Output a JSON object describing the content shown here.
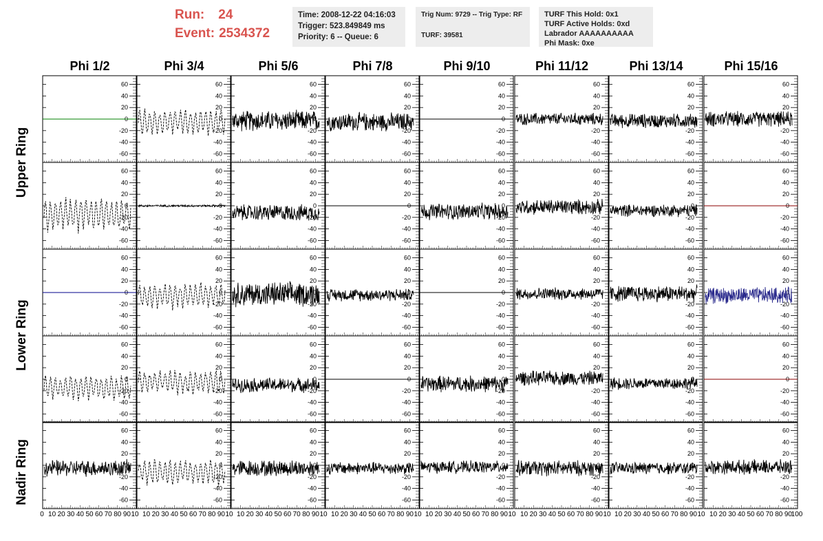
{
  "header": {
    "run_label": "Run:",
    "run_value": "24",
    "event_label": "Event:",
    "event_value": "2534372",
    "time_line": "Time: 2008-12-22 04:16:03",
    "trigger_line": "Trigger: 523.849849 ms",
    "priority_line": "Priority: 6 -- Queue: 6",
    "trig_line": "Trig Num: 9729 -- Trig Type: RF",
    "turf_line": "TURF: 39581",
    "turf_hold_line": "TURF This Hold: 0x1",
    "turf_active_line": "TURF Active Holds: 0xd",
    "labrador_line": "Labrador AAAAAAAAAA",
    "phi_mask_line": "Phi Mask: 0xe"
  },
  "columns": [
    "Phi 1/2",
    "Phi 3/4",
    "Phi 5/6",
    "Phi 7/8",
    "Phi 9/10",
    "Phi 11/12",
    "Phi 13/14",
    "Phi 15/16"
  ],
  "rings": [
    "Upper Ring",
    "Lower Ring",
    "Nadir Ring"
  ],
  "chart_data": {
    "type": "line",
    "title": "",
    "xlabel": "",
    "ylabel": "",
    "xlim": [
      0,
      100
    ],
    "ylim": [
      -75,
      75
    ],
    "x_ticks": [
      "0",
      "10",
      "20",
      "30",
      "40",
      "50",
      "60",
      "70",
      "80",
      "90",
      "100"
    ],
    "x_tick_labels_printed": "10 20 30 40 50 60 70 80 90 10",
    "first_column_extra_label": "0",
    "last_column_extra_label": "100",
    "y_ticks": [
      60,
      40,
      20,
      0,
      -20,
      -40,
      -60
    ],
    "rows": [
      {
        "row": 1,
        "panels": [
          {
            "kind": "flat",
            "color": "#008000"
          },
          {
            "kind": "dashed",
            "amplitude": 22,
            "offset": -5,
            "color": "#000000"
          },
          {
            "kind": "noise",
            "amplitude": 20,
            "offset": -3,
            "color": "#000000"
          },
          {
            "kind": "noise",
            "amplitude": 18,
            "offset": -5,
            "color": "#000000"
          },
          {
            "kind": "flat",
            "color": "#000000"
          },
          {
            "kind": "noise",
            "amplitude": 12,
            "offset": 0,
            "color": "#000000"
          },
          {
            "kind": "noise",
            "amplitude": 14,
            "offset": -3,
            "color": "#000000"
          },
          {
            "kind": "noise",
            "amplitude": 15,
            "offset": 0,
            "color": "#000000"
          }
        ]
      },
      {
        "row": 2,
        "panels": [
          {
            "kind": "dashed",
            "amplitude": 28,
            "offset": -15,
            "color": "#000000"
          },
          {
            "kind": "noise",
            "amplitude": 2,
            "offset": 0,
            "color": "#000000"
          },
          {
            "kind": "noise",
            "amplitude": 16,
            "offset": -12,
            "color": "#000000"
          },
          {
            "kind": "flat",
            "color": "#000000"
          },
          {
            "kind": "noise",
            "amplitude": 16,
            "offset": -10,
            "color": "#000000"
          },
          {
            "kind": "noise",
            "amplitude": 15,
            "offset": -2,
            "color": "#000000"
          },
          {
            "kind": "noise",
            "amplitude": 12,
            "offset": -8,
            "color": "#000000"
          },
          {
            "kind": "flat",
            "color": "#8b0000"
          }
        ]
      },
      {
        "row": 3,
        "panels": [
          {
            "kind": "flat",
            "color": "#00008b"
          },
          {
            "kind": "dashed",
            "amplitude": 22,
            "offset": -5,
            "color": "#000000"
          },
          {
            "kind": "noise",
            "amplitude": 24,
            "offset": -3,
            "color": "#000000"
          },
          {
            "kind": "noise",
            "amplitude": 12,
            "offset": -4,
            "color": "#000000"
          },
          {
            "kind": "flat",
            "color": "#000000"
          },
          {
            "kind": "noise",
            "amplitude": 12,
            "offset": -2,
            "color": "#000000"
          },
          {
            "kind": "noise",
            "amplitude": 16,
            "offset": -2,
            "color": "#000000"
          },
          {
            "kind": "noise",
            "amplitude": 16,
            "offset": -5,
            "color": "#2a2a8c"
          }
        ]
      },
      {
        "row": 4,
        "panels": [
          {
            "kind": "dashed",
            "amplitude": 22,
            "offset": -15,
            "color": "#000000"
          },
          {
            "kind": "dashed",
            "amplitude": 20,
            "offset": -5,
            "color": "#000000"
          },
          {
            "kind": "noise",
            "amplitude": 14,
            "offset": -10,
            "color": "#000000"
          },
          {
            "kind": "flat",
            "color": "#000000"
          },
          {
            "kind": "noise",
            "amplitude": 16,
            "offset": -8,
            "color": "#000000"
          },
          {
            "kind": "noise",
            "amplitude": 14,
            "offset": 2,
            "color": "#000000"
          },
          {
            "kind": "noise",
            "amplitude": 12,
            "offset": -7,
            "color": "#000000"
          },
          {
            "kind": "flat",
            "color": "#8b0000"
          }
        ]
      },
      {
        "row": 5,
        "panels": [
          {
            "kind": "noise",
            "amplitude": 16,
            "offset": -5,
            "color": "#000000"
          },
          {
            "kind": "dashed",
            "amplitude": 22,
            "offset": -12,
            "color": "#000000"
          },
          {
            "kind": "noise",
            "amplitude": 16,
            "offset": -5,
            "color": "#000000"
          },
          {
            "kind": "noise",
            "amplitude": 12,
            "offset": -5,
            "color": "#000000"
          },
          {
            "kind": "noise",
            "amplitude": 12,
            "offset": -3,
            "color": "#000000"
          },
          {
            "kind": "noise",
            "amplitude": 15,
            "offset": -5,
            "color": "#000000"
          },
          {
            "kind": "noise",
            "amplitude": 12,
            "offset": -5,
            "color": "#000000"
          },
          {
            "kind": "noise",
            "amplitude": 14,
            "offset": -3,
            "color": "#000000"
          }
        ]
      }
    ]
  }
}
